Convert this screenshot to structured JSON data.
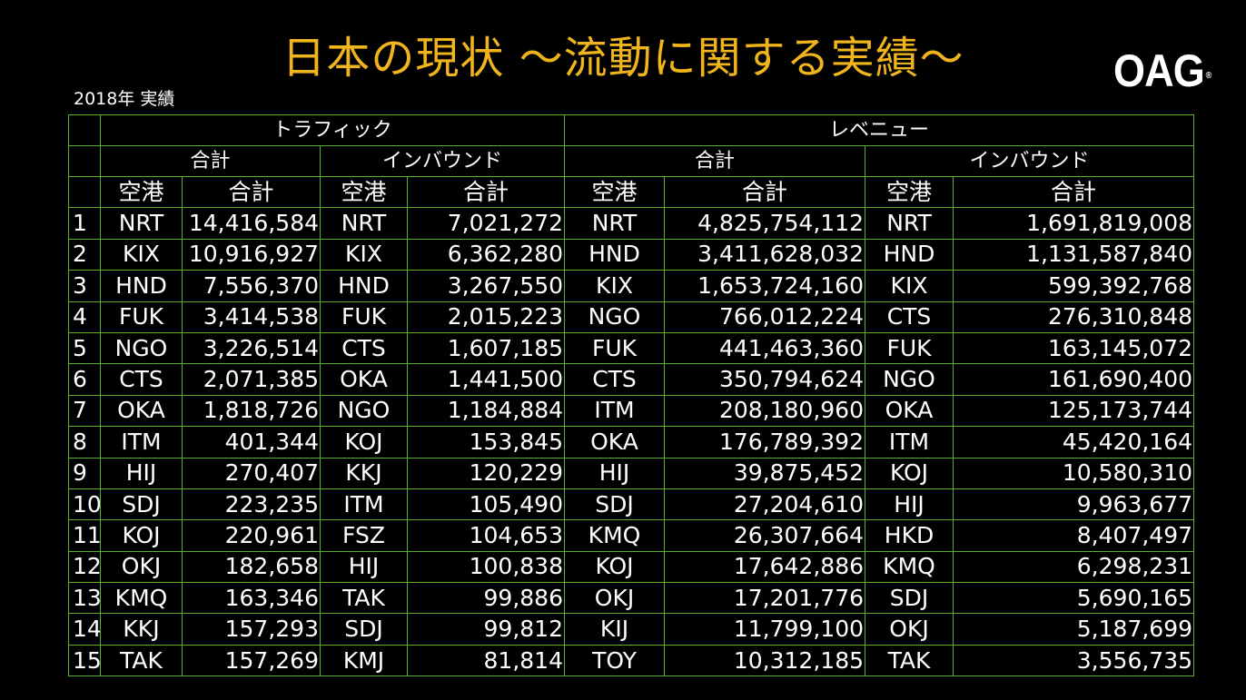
{
  "title": "日本の現状 ～流動に関する実績～",
  "logo": "OAG",
  "subtitle": "2018年 実績",
  "headers": {
    "traffic": "トラフィック",
    "revenue": "レベニュー",
    "total": "合計",
    "inbound": "インバウンド",
    "airport": "空港",
    "sum": "合計"
  },
  "rows": [
    {
      "rank": "1",
      "t_air": "NRT",
      "t_val": "14,416,584",
      "ti_air": "NRT",
      "ti_val": "7,021,272",
      "r_air": "NRT",
      "r_val": "4,825,754,112",
      "ri_air": "NRT",
      "ri_val": "1,691,819,008"
    },
    {
      "rank": "2",
      "t_air": "KIX",
      "t_val": "10,916,927",
      "ti_air": "KIX",
      "ti_val": "6,362,280",
      "r_air": "HND",
      "r_val": "3,411,628,032",
      "ri_air": "HND",
      "ri_val": "1,131,587,840"
    },
    {
      "rank": "3",
      "t_air": "HND",
      "t_val": "7,556,370",
      "ti_air": "HND",
      "ti_val": "3,267,550",
      "r_air": "KIX",
      "r_val": "1,653,724,160",
      "ri_air": "KIX",
      "ri_val": "599,392,768"
    },
    {
      "rank": "4",
      "t_air": "FUK",
      "t_val": "3,414,538",
      "ti_air": "FUK",
      "ti_val": "2,015,223",
      "r_air": "NGO",
      "r_val": "766,012,224",
      "ri_air": "CTS",
      "ri_val": "276,310,848"
    },
    {
      "rank": "5",
      "t_air": "NGO",
      "t_val": "3,226,514",
      "ti_air": "CTS",
      "ti_val": "1,607,185",
      "r_air": "FUK",
      "r_val": "441,463,360",
      "ri_air": "FUK",
      "ri_val": "163,145,072"
    },
    {
      "rank": "6",
      "t_air": "CTS",
      "t_val": "2,071,385",
      "ti_air": "OKA",
      "ti_val": "1,441,500",
      "r_air": "CTS",
      "r_val": "350,794,624",
      "ri_air": "NGO",
      "ri_val": "161,690,400"
    },
    {
      "rank": "7",
      "t_air": "OKA",
      "t_val": "1,818,726",
      "ti_air": "NGO",
      "ti_val": "1,184,884",
      "r_air": "ITM",
      "r_val": "208,180,960",
      "ri_air": "OKA",
      "ri_val": "125,173,744"
    },
    {
      "rank": "8",
      "t_air": "ITM",
      "t_val": "401,344",
      "ti_air": "KOJ",
      "ti_val": "153,845",
      "r_air": "OKA",
      "r_val": "176,789,392",
      "ri_air": "ITM",
      "ri_val": "45,420,164"
    },
    {
      "rank": "9",
      "t_air": "HIJ",
      "t_val": "270,407",
      "ti_air": "KKJ",
      "ti_val": "120,229",
      "r_air": "HIJ",
      "r_val": "39,875,452",
      "ri_air": "KOJ",
      "ri_val": "10,580,310"
    },
    {
      "rank": "10",
      "t_air": "SDJ",
      "t_val": "223,235",
      "ti_air": "ITM",
      "ti_val": "105,490",
      "r_air": "SDJ",
      "r_val": "27,204,610",
      "ri_air": "HIJ",
      "ri_val": "9,963,677"
    },
    {
      "rank": "11",
      "t_air": "KOJ",
      "t_val": "220,961",
      "ti_air": "FSZ",
      "ti_val": "104,653",
      "r_air": "KMQ",
      "r_val": "26,307,664",
      "ri_air": "HKD",
      "ri_val": "8,407,497"
    },
    {
      "rank": "12",
      "t_air": "OKJ",
      "t_val": "182,658",
      "ti_air": "HIJ",
      "ti_val": "100,838",
      "r_air": "KOJ",
      "r_val": "17,642,886",
      "ri_air": "KMQ",
      "ri_val": "6,298,231"
    },
    {
      "rank": "13",
      "t_air": "KMQ",
      "t_val": "163,346",
      "ti_air": "TAK",
      "ti_val": "99,886",
      "r_air": "OKJ",
      "r_val": "17,201,776",
      "ri_air": "SDJ",
      "ri_val": "5,690,165"
    },
    {
      "rank": "14",
      "t_air": "KKJ",
      "t_val": "157,293",
      "ti_air": "SDJ",
      "ti_val": "99,812",
      "r_air": "KIJ",
      "r_val": "11,799,100",
      "ri_air": "OKJ",
      "ri_val": "5,187,699"
    },
    {
      "rank": "15",
      "t_air": "TAK",
      "t_val": "157,269",
      "ti_air": "KMJ",
      "ti_val": "81,814",
      "r_air": "TOY",
      "r_val": "10,312,185",
      "ri_air": "TAK",
      "ri_val": "3,556,735"
    }
  ]
}
